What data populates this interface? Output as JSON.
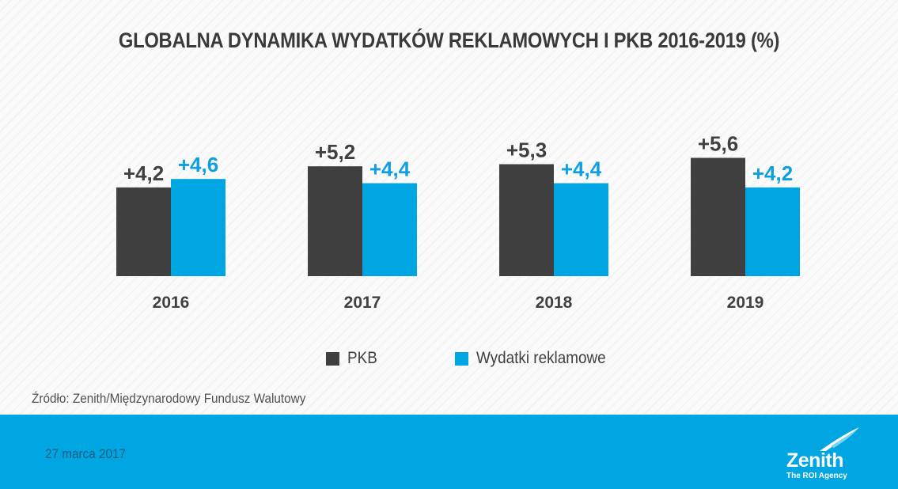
{
  "chart_data": {
    "type": "bar",
    "title": "GLOBALNA DYNAMIKA WYDATKÓW REKLAMOWYCH I PKB 2016-2019 (%)",
    "categories": [
      "2016",
      "2017",
      "2018",
      "2019"
    ],
    "series": [
      {
        "name": "PKB",
        "values": [
          4.2,
          5.2,
          5.3,
          5.6
        ],
        "labels": [
          "+4,2",
          "+5,2",
          "+5,3",
          "+5,6"
        ],
        "color": "#404040",
        "label_color": "#404040"
      },
      {
        "name": "Wydatki reklamowe",
        "values": [
          4.6,
          4.4,
          4.4,
          4.2
        ],
        "labels": [
          "+4,6",
          "+4,4",
          "+4,4",
          "+4,2"
        ],
        "color": "#00a6e2",
        "label_color": "#0d9fe0"
      }
    ],
    "ylim": [
      0,
      6
    ],
    "grid": false,
    "legend_position": "bottom-center",
    "xlabel": "",
    "ylabel": ""
  },
  "source": "Źródło: Zenith/Międzynarodowy Fundusz Walutowy",
  "footer": {
    "date": "27 marca 2017",
    "brand": "Zenith",
    "tagline": "The ROI Agency",
    "background_color": "#00a6e2"
  }
}
